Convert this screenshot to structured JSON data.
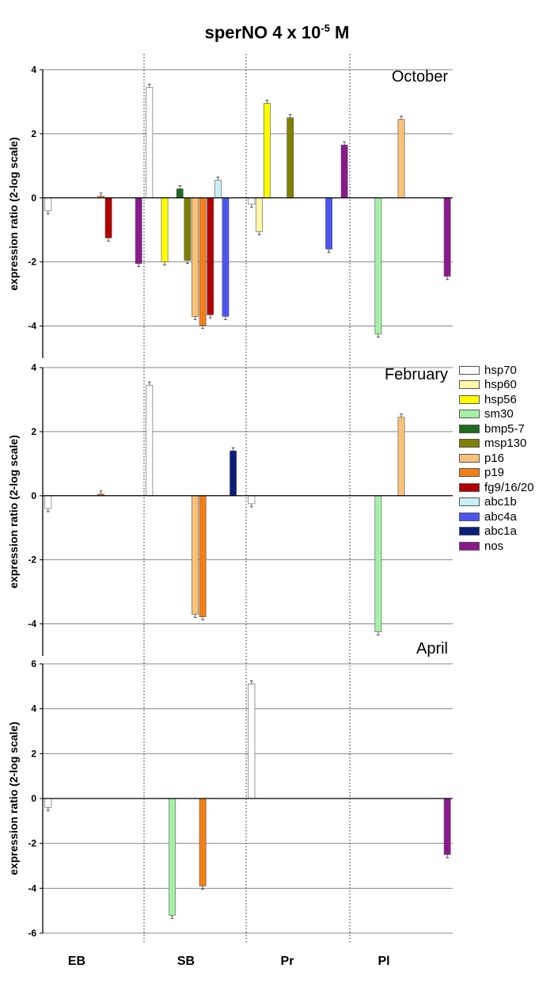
{
  "title": {
    "main": "sperNO 4 x 10",
    "exp": "-5",
    "unit": " M"
  },
  "chart_data": {
    "type": "bar",
    "ylabel": "expression ratio (2-log scale)",
    "groups": [
      "EB",
      "SB",
      "Pr",
      "Pl"
    ],
    "series": [
      {
        "name": "hsp70",
        "color": "#ffffff"
      },
      {
        "name": "hsp60",
        "color": "#fff8a8"
      },
      {
        "name": "hsp56",
        "color": "#ffff00"
      },
      {
        "name": "sm30",
        "color": "#a6f0a6"
      },
      {
        "name": "bmp5-7",
        "color": "#1f6b1f"
      },
      {
        "name": "msp130",
        "color": "#808000"
      },
      {
        "name": "p16",
        "color": "#f9c27a"
      },
      {
        "name": "p19",
        "color": "#f57f17"
      },
      {
        "name": "fg9/16/20",
        "color": "#b30000"
      },
      {
        "name": "abc1b",
        "color": "#c8eef8"
      },
      {
        "name": "abc4a",
        "color": "#4d55f0"
      },
      {
        "name": "abc1a",
        "color": "#0b1e7a"
      },
      {
        "name": "nos",
        "color": "#8a1a8c"
      }
    ],
    "panels": [
      {
        "label": "October",
        "ylim": [
          -5,
          4
        ],
        "yticks": [
          4,
          2,
          0,
          -2,
          -4
        ],
        "bars": {
          "EB": {
            "hsp70": -0.4,
            "p19": 0.05,
            "fg9/16/20": -1.25,
            "nos": -2.05
          },
          "SB": {
            "hsp70": 3.45,
            "hsp56": -2.0,
            "bmp5-7": 0.28,
            "msp130": -1.95,
            "p16": -3.7,
            "p19": -3.98,
            "fg9/16/20": -3.65,
            "abc1b": 0.55,
            "abc4a": -3.7
          },
          "Pr": {
            "hsp70": -0.2,
            "hsp60": -1.05,
            "hsp56": 2.95,
            "msp130": 2.5,
            "abc4a": -1.6,
            "nos": 1.65
          },
          "Pl": {
            "sm30": -4.25,
            "p16": 2.45,
            "nos": -2.45
          }
        }
      },
      {
        "label": "February",
        "ylim": [
          -5,
          4
        ],
        "yticks": [
          4,
          2,
          0,
          -2,
          -4
        ],
        "bars": {
          "EB": {
            "hsp70": -0.4,
            "p19": 0.05
          },
          "SB": {
            "hsp70": 3.45,
            "p16": -3.7,
            "p19": -3.78,
            "abc1a": 1.4
          },
          "Pr": {
            "hsp70": -0.25
          },
          "Pl": {
            "sm30": -4.25,
            "p16": 2.45
          }
        }
      },
      {
        "label": "April",
        "ylim": [
          -6,
          6
        ],
        "yticks": [
          6,
          4,
          2,
          0,
          -2,
          -4,
          -6
        ],
        "bars": {
          "EB": {
            "hsp70": -0.4
          },
          "SB": {
            "sm30": -5.2,
            "p19": -3.9
          },
          "Pr": {
            "hsp70": 5.1
          },
          "Pl": {
            "nos": -2.5
          }
        }
      }
    ]
  }
}
